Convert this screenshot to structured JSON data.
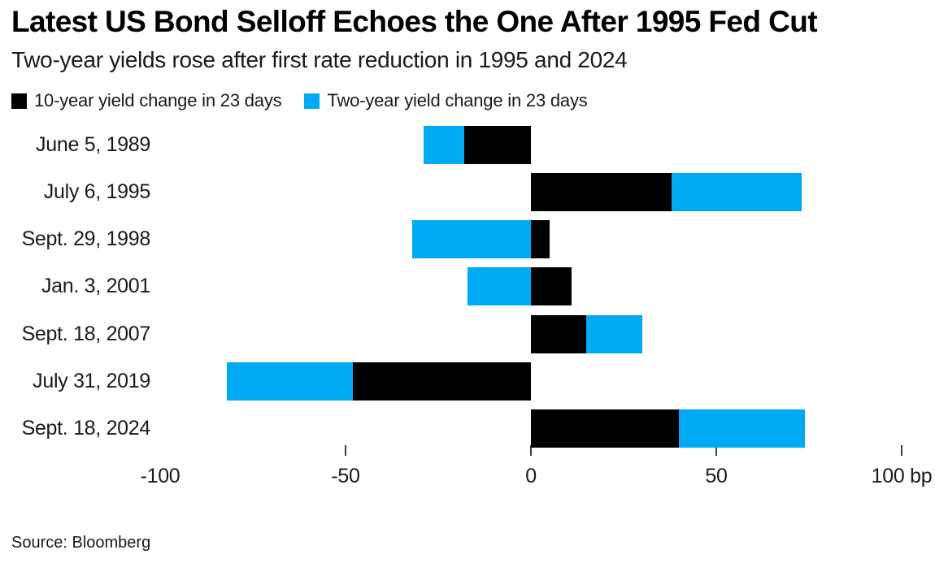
{
  "header": {
    "title": "Latest US Bond Selloff Echoes the One After 1995 Fed Cut",
    "subtitle": "Two-year yields rose after first rate reduction in 1995 and 2024"
  },
  "legend": {
    "items": [
      {
        "label": "10-year yield change in 23 days",
        "color": "#000000"
      },
      {
        "label": "Two-year yield change in 23 days",
        "color": "#00A9F4"
      }
    ]
  },
  "chart_data": {
    "type": "bar",
    "orientation": "horizontal",
    "title": "Latest US Bond Selloff Echoes the One After 1995 Fed Cut",
    "subtitle": "Two-year yields rose after first rate reduction in 1995 and 2024",
    "unit": "bp",
    "categories": [
      "June 5, 1989",
      "July 6, 1995",
      "Sept. 29, 1998",
      "Jan. 3, 2001",
      "Sept. 18, 2007",
      "July 31, 2019",
      "Sept. 18, 2024"
    ],
    "series": [
      {
        "name": "10-year yield change in 23 days",
        "color": "#000000",
        "values": [
          -18,
          38,
          5,
          11,
          15,
          -48,
          40
        ]
      },
      {
        "name": "Two-year yield change in 23 days",
        "color": "#00A9F4",
        "values": [
          -29,
          73,
          -32,
          -17,
          30,
          -82,
          74
        ]
      }
    ],
    "x_axis": {
      "range": [
        -100,
        100
      ],
      "ticks": [
        -100,
        -50,
        0,
        50,
        100
      ],
      "tick_labels": [
        "-100",
        "-50",
        "0",
        "50",
        "100 bp"
      ],
      "tick_marks": [
        -50,
        0,
        50,
        100
      ]
    },
    "grid": false,
    "legend_position": "top",
    "bar_style": "overlapping-from-zero, 10-year drawn on top of two-year"
  },
  "footer": {
    "source": "Source: Bloomberg"
  }
}
